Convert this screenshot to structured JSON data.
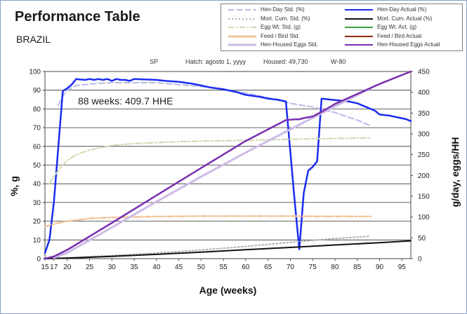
{
  "title": "Performance Table",
  "subtitle": "BRAZIL",
  "info": {
    "strain": "SP",
    "hatch": "Hatch:  agosto 1, yyyy",
    "housed": "Housed: 49,730",
    "week": "W-80"
  },
  "legend": [
    {
      "label": "Hen-Day Std. (%)",
      "color": "#b9b9e8",
      "style": "dash",
      "width": 2
    },
    {
      "label": "Hen-Day Actual (%)",
      "color": "#1a2cf0",
      "style": "solid",
      "width": 2
    },
    {
      "label": "Mort. Cum. Std. (%)",
      "color": "#b0b0b0",
      "style": "dot",
      "width": 2
    },
    {
      "label": "Mort. Cum. Actual (%)",
      "color": "#111111",
      "style": "solid",
      "width": 2
    },
    {
      "label": "Egg Wt. Std. (g)",
      "color": "#cfd9b0",
      "style": "dashdot",
      "width": 2
    },
    {
      "label": "Egg Wt. Act. (g)",
      "color": "#3aa040",
      "style": "solid",
      "width": 2
    },
    {
      "label": "Feed / Bird Std.",
      "color": "#f2c49a",
      "style": "solid",
      "width": 3
    },
    {
      "label": "Feed / Bird Actual",
      "color": "#8b2a0a",
      "style": "solid",
      "width": 2
    },
    {
      "label": "Hen-Housed Eggs Std.",
      "color": "#cdbbe6",
      "style": "solid",
      "width": 3
    },
    {
      "label": "Hen-Housed Eggs Actual",
      "color": "#7a2fb0",
      "style": "solid",
      "width": 2
    }
  ],
  "chart_data": {
    "type": "line",
    "title": "Performance Table",
    "subtitle": "BRAZIL",
    "annotation": "88 weeks: 409.7 HHE",
    "xlabel": "Age (weeks)",
    "ylabel": "%, g",
    "y2label": "g/day, eggs/HH",
    "xlim": [
      15,
      97
    ],
    "ylim": [
      0,
      100
    ],
    "y2lim": [
      0,
      450
    ],
    "xticks": [
      15,
      17,
      20,
      25,
      30,
      35,
      40,
      45,
      50,
      55,
      60,
      65,
      70,
      75,
      80,
      85,
      90,
      95
    ],
    "yticks": [
      0,
      10,
      20,
      30,
      40,
      50,
      60,
      70,
      80,
      90,
      100
    ],
    "y2ticks": [
      0,
      50,
      100,
      150,
      200,
      250,
      300,
      350,
      400,
      450
    ],
    "grid": true,
    "legend_position": "top-right",
    "series": [
      {
        "name": "Hen-Day Std. (%)",
        "axis": "left",
        "color": "#b9b9e8",
        "style": "dash",
        "width": 2,
        "x": [
          18,
          19,
          20,
          22,
          24,
          26,
          28,
          30,
          35,
          40,
          45,
          50,
          55,
          60,
          65,
          70,
          75,
          80,
          85,
          88
        ],
        "y": [
          82,
          87,
          90,
          92.5,
          93,
          93.5,
          93.8,
          94,
          94,
          94,
          93,
          92,
          90.5,
          88.5,
          86,
          83,
          81,
          78,
          74,
          71
        ]
      },
      {
        "name": "Hen-Day Actual (%)",
        "axis": "left",
        "color": "#1a2cf0",
        "style": "solid",
        "width": 2.5,
        "x": [
          15,
          16,
          17,
          18,
          19,
          20,
          21,
          22,
          24,
          25,
          26,
          27,
          28,
          29,
          30,
          31,
          32,
          33,
          34,
          35,
          40,
          42,
          45,
          48,
          50,
          52,
          55,
          58,
          60,
          63,
          65,
          67,
          69,
          71,
          72,
          73,
          74,
          75,
          76,
          77,
          79,
          81,
          83,
          85,
          87,
          89,
          90,
          92,
          94,
          96,
          97
        ],
        "y": [
          3,
          10,
          30,
          60,
          89.5,
          91,
          93,
          96,
          95.5,
          96,
          95.5,
          96,
          95.5,
          96,
          95,
          96,
          95.5,
          95.5,
          95,
          96,
          95.5,
          95,
          94.5,
          93.5,
          92.5,
          91.5,
          90.5,
          89,
          87.5,
          86.5,
          85.5,
          85,
          84,
          30,
          5,
          35,
          47,
          49,
          52,
          85.5,
          85,
          84.5,
          84,
          83,
          81,
          79,
          77,
          76.5,
          75.5,
          74.5,
          73.5
        ]
      },
      {
        "name": "Mort. Cum. Std. (%)",
        "axis": "left",
        "color": "#b0b0b0",
        "style": "dot",
        "width": 2,
        "x": [
          15,
          20,
          30,
          40,
          50,
          60,
          70,
          80,
          88
        ],
        "y": [
          0,
          0.5,
          1.6,
          3,
          4.6,
          6.5,
          8.7,
          10.8,
          12
        ]
      },
      {
        "name": "Mort. Cum. Actual (%)",
        "axis": "left",
        "color": "#111111",
        "style": "solid",
        "width": 2,
        "x": [
          15,
          20,
          30,
          40,
          50,
          60,
          70,
          80,
          90,
          97
        ],
        "y": [
          0,
          0.3,
          1.2,
          2.3,
          3.5,
          4.8,
          6,
          7.3,
          8.5,
          9.5
        ]
      },
      {
        "name": "Egg Wt. Std. (g)",
        "axis": "left",
        "color": "#cfd9b0",
        "style": "dashdot",
        "width": 2,
        "x": [
          16,
          17,
          18,
          19,
          20,
          22,
          25,
          30,
          35,
          40,
          45,
          50,
          55,
          60,
          65,
          70,
          75,
          80,
          85,
          88
        ],
        "y": [
          40,
          44,
          47,
          50,
          52.5,
          55.5,
          58,
          60.5,
          61.5,
          62,
          62.5,
          62.8,
          63,
          63.2,
          63.5,
          63.8,
          64,
          64.2,
          64.4,
          64.5
        ]
      },
      {
        "name": "Feed / Bird Std.",
        "axis": "left",
        "color": "#f2c49a",
        "style": "dashdot",
        "width": 2.5,
        "x": [
          15,
          17,
          20,
          25,
          30,
          35,
          40,
          45,
          50,
          55,
          60,
          65,
          70,
          75,
          80,
          85,
          88
        ],
        "y": [
          17,
          18.5,
          20,
          21.5,
          22,
          22.3,
          22.5,
          22.6,
          22.7,
          22.7,
          22.7,
          22.7,
          22.7,
          22.6,
          22.6,
          22.5,
          22.5
        ]
      },
      {
        "name": "Hen-Housed Eggs Std.",
        "axis": "right",
        "color": "#cdbbe6",
        "style": "solid",
        "width": 3,
        "x": [
          17,
          20,
          30,
          40,
          50,
          60,
          70,
          80,
          88
        ],
        "y": [
          2,
          14,
          75,
          137,
          197,
          255,
          311,
          366,
          409.7
        ]
      },
      {
        "name": "Hen-Housed Eggs Actual",
        "axis": "right",
        "color": "#7a2fb0",
        "style": "solid",
        "width": 2.5,
        "x": [
          15,
          17,
          20,
          30,
          40,
          50,
          60,
          69,
          71,
          72,
          73,
          75,
          77,
          80,
          90,
          97
        ],
        "y": [
          0,
          5,
          21,
          86,
          152,
          218,
          283,
          333,
          335,
          335,
          338,
          342,
          353,
          372,
          420,
          450
        ]
      }
    ]
  }
}
